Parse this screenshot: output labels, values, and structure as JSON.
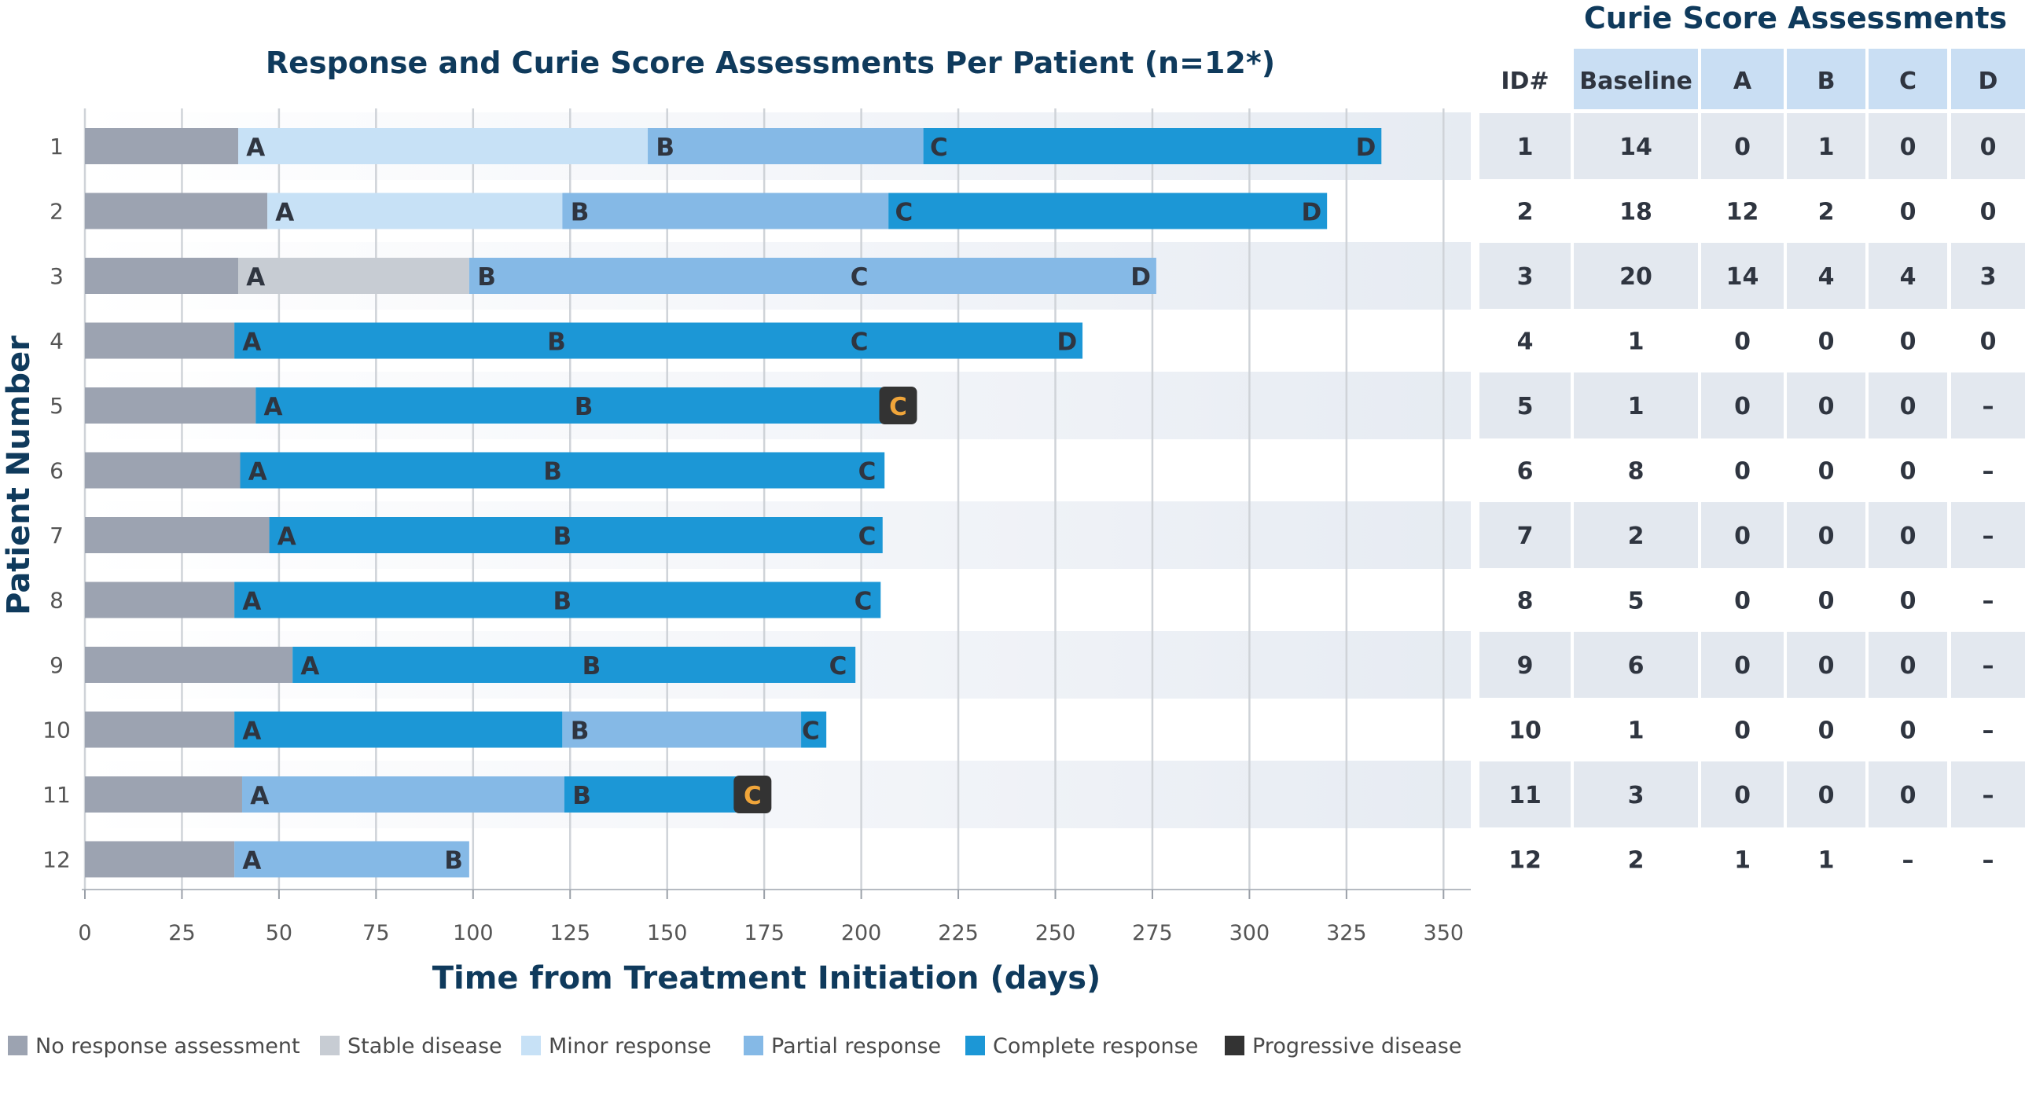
{
  "chart_data": {
    "type": "bar",
    "subtype": "swimmer",
    "title": "Response and Curie Score Assessments Per Patient (n=12*)",
    "xlabel": "Time from Treatment Initiation (days)",
    "ylabel": "Patient Number",
    "xlim": [
      0,
      357
    ],
    "xticks": [
      0,
      25,
      50,
      75,
      100,
      125,
      150,
      175,
      200,
      225,
      250,
      275,
      300,
      325,
      350
    ],
    "status_colors": {
      "none": "#9ca3b1",
      "stable": "#c7ccd3",
      "minor": "#c7e1f6",
      "partial": "#85b9e6",
      "complete": "#1c97d6",
      "progressive": "#333333"
    },
    "legend": [
      {
        "key": "none",
        "label": "No response assessment"
      },
      {
        "key": "stable",
        "label": "Stable disease"
      },
      {
        "key": "minor",
        "label": "Minor response"
      },
      {
        "key": "partial",
        "label": "Partial response"
      },
      {
        "key": "complete",
        "label": "Complete response"
      },
      {
        "key": "progressive",
        "label": "Progressive disease"
      }
    ],
    "patients": [
      {
        "id": "1",
        "segments": [
          {
            "start": 0,
            "end": 39.5,
            "status": "none"
          },
          {
            "start": 39.5,
            "end": 145,
            "status": "minor"
          },
          {
            "start": 145,
            "end": 216,
            "status": "partial"
          },
          {
            "start": 216,
            "end": 334,
            "status": "complete"
          }
        ],
        "markers": [
          {
            "label": "A",
            "day": 44
          },
          {
            "label": "B",
            "day": 149.5
          },
          {
            "label": "C",
            "day": 220
          },
          {
            "label": "D",
            "day": 330
          }
        ]
      },
      {
        "id": "2",
        "segments": [
          {
            "start": 0,
            "end": 47,
            "status": "none"
          },
          {
            "start": 47,
            "end": 123,
            "status": "minor"
          },
          {
            "start": 123,
            "end": 207,
            "status": "partial"
          },
          {
            "start": 207,
            "end": 320,
            "status": "complete"
          }
        ],
        "markers": [
          {
            "label": "A",
            "day": 51.5
          },
          {
            "label": "B",
            "day": 127.5
          },
          {
            "label": "C",
            "day": 211
          },
          {
            "label": "D",
            "day": 316
          }
        ]
      },
      {
        "id": "3",
        "segments": [
          {
            "start": 0,
            "end": 39.5,
            "status": "none"
          },
          {
            "start": 39.5,
            "end": 99,
            "status": "stable"
          },
          {
            "start": 99,
            "end": 276,
            "status": "partial"
          }
        ],
        "markers": [
          {
            "label": "A",
            "day": 44
          },
          {
            "label": "B",
            "day": 103.5
          },
          {
            "label": "C",
            "day": 199.5
          },
          {
            "label": "D",
            "day": 272
          }
        ]
      },
      {
        "id": "4",
        "segments": [
          {
            "start": 0,
            "end": 38.5,
            "status": "none"
          },
          {
            "start": 38.5,
            "end": 257,
            "status": "complete"
          }
        ],
        "markers": [
          {
            "label": "A",
            "day": 43
          },
          {
            "label": "B",
            "day": 121.5
          },
          {
            "label": "C",
            "day": 199.5
          },
          {
            "label": "D",
            "day": 253
          }
        ]
      },
      {
        "id": "5",
        "segments": [
          {
            "start": 0,
            "end": 44,
            "status": "none"
          },
          {
            "start": 44,
            "end": 211,
            "status": "complete"
          }
        ],
        "markers": [
          {
            "label": "A",
            "day": 48.5
          },
          {
            "label": "B",
            "day": 128.5
          },
          {
            "label": "C",
            "day": 209.5,
            "progressive": true
          }
        ]
      },
      {
        "id": "6",
        "segments": [
          {
            "start": 0,
            "end": 40,
            "status": "none"
          },
          {
            "start": 40,
            "end": 206,
            "status": "complete"
          }
        ],
        "markers": [
          {
            "label": "A",
            "day": 44.5
          },
          {
            "label": "B",
            "day": 120.5
          },
          {
            "label": "C",
            "day": 201.5
          }
        ]
      },
      {
        "id": "7",
        "segments": [
          {
            "start": 0,
            "end": 47.5,
            "status": "none"
          },
          {
            "start": 47.5,
            "end": 205.5,
            "status": "complete"
          }
        ],
        "markers": [
          {
            "label": "A",
            "day": 52
          },
          {
            "label": "B",
            "day": 123
          },
          {
            "label": "C",
            "day": 201.5
          }
        ]
      },
      {
        "id": "8",
        "segments": [
          {
            "start": 0,
            "end": 38.5,
            "status": "none"
          },
          {
            "start": 38.5,
            "end": 205,
            "status": "complete"
          }
        ],
        "markers": [
          {
            "label": "A",
            "day": 43
          },
          {
            "label": "B",
            "day": 123
          },
          {
            "label": "C",
            "day": 200.5
          }
        ]
      },
      {
        "id": "9",
        "segments": [
          {
            "start": 0,
            "end": 53.5,
            "status": "none"
          },
          {
            "start": 53.5,
            "end": 198.5,
            "status": "complete"
          }
        ],
        "markers": [
          {
            "label": "A",
            "day": 58
          },
          {
            "label": "B",
            "day": 130.5
          },
          {
            "label": "C",
            "day": 194
          }
        ]
      },
      {
        "id": "10",
        "segments": [
          {
            "start": 0,
            "end": 38.5,
            "status": "none"
          },
          {
            "start": 38.5,
            "end": 123,
            "status": "complete"
          },
          {
            "start": 123,
            "end": 184.5,
            "status": "partial"
          },
          {
            "start": 184.5,
            "end": 191,
            "status": "complete"
          }
        ],
        "markers": [
          {
            "label": "A",
            "day": 43
          },
          {
            "label": "B",
            "day": 127.5
          },
          {
            "label": "C",
            "day": 187
          }
        ]
      },
      {
        "id": "11",
        "segments": [
          {
            "start": 0,
            "end": 40.5,
            "status": "none"
          },
          {
            "start": 40.5,
            "end": 123.5,
            "status": "partial"
          },
          {
            "start": 123.5,
            "end": 173,
            "status": "complete"
          }
        ],
        "markers": [
          {
            "label": "A",
            "day": 45
          },
          {
            "label": "B",
            "day": 128
          },
          {
            "label": "C",
            "day": 172,
            "progressive": true
          }
        ]
      },
      {
        "id": "12",
        "segments": [
          {
            "start": 0,
            "end": 38.5,
            "status": "none"
          },
          {
            "start": 38.5,
            "end": 99,
            "status": "partial"
          }
        ],
        "markers": [
          {
            "label": "A",
            "day": 43
          },
          {
            "label": "B",
            "day": 95
          }
        ]
      }
    ]
  },
  "curie_table": {
    "title": "Curie Score Assessments",
    "id_header": "ID#",
    "columns": [
      "Baseline",
      "A",
      "B",
      "C",
      "D"
    ],
    "rows": [
      {
        "id": "1",
        "values": [
          "14",
          "0",
          "1",
          "0",
          "0"
        ]
      },
      {
        "id": "2",
        "values": [
          "18",
          "12",
          "2",
          "0",
          "0"
        ]
      },
      {
        "id": "3",
        "values": [
          "20",
          "14",
          "4",
          "4",
          "3"
        ]
      },
      {
        "id": "4",
        "values": [
          "1",
          "0",
          "0",
          "0",
          "0"
        ]
      },
      {
        "id": "5",
        "values": [
          "1",
          "0",
          "0",
          "0",
          "–"
        ]
      },
      {
        "id": "6",
        "values": [
          "8",
          "0",
          "0",
          "0",
          "–"
        ]
      },
      {
        "id": "7",
        "values": [
          "2",
          "0",
          "0",
          "0",
          "–"
        ]
      },
      {
        "id": "8",
        "values": [
          "5",
          "0",
          "0",
          "0",
          "–"
        ]
      },
      {
        "id": "9",
        "values": [
          "6",
          "0",
          "0",
          "0",
          "–"
        ]
      },
      {
        "id": "10",
        "values": [
          "1",
          "0",
          "0",
          "0",
          "–"
        ]
      },
      {
        "id": "11",
        "values": [
          "3",
          "0",
          "0",
          "0",
          "–"
        ]
      },
      {
        "id": "12",
        "values": [
          "2",
          "1",
          "1",
          "–",
          "–"
        ]
      }
    ]
  },
  "colors": {
    "title": "#0f3a5c",
    "text": "#2f3540",
    "band": "#e6ebf2",
    "table_header": "#c9def3",
    "table_cell": "#e3e8ef",
    "grid": "#cfd3d8",
    "progressive_text": "#f0a53a"
  }
}
